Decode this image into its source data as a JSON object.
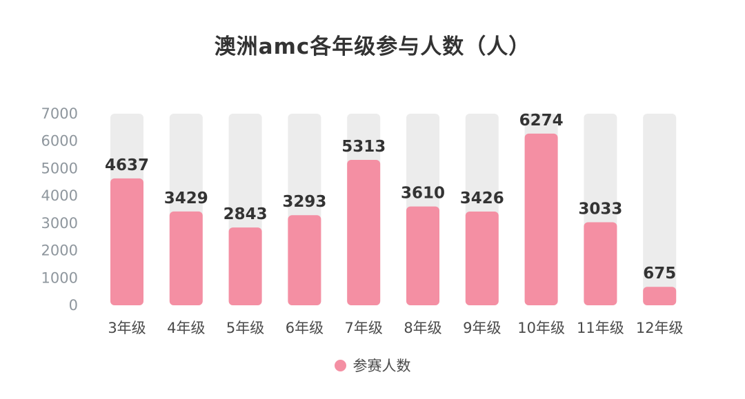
{
  "chart_data": {
    "type": "bar",
    "title": "澳洲amc各年级参与人数（人）",
    "categories": [
      "3年级",
      "4年级",
      "5年级",
      "6年级",
      "7年级",
      "8年级",
      "9年级",
      "10年级",
      "11年级",
      "12年级"
    ],
    "series": [
      {
        "name": "参赛人数",
        "values": [
          4637,
          3429,
          2843,
          3293,
          5313,
          3610,
          3426,
          6274,
          3033,
          675
        ]
      }
    ],
    "yticks": [
      "0",
      "1000",
      "2000",
      "3000",
      "4000",
      "5000",
      "6000",
      "7000"
    ],
    "ylim": [
      0,
      7000
    ],
    "grid": false,
    "legend": "bottom-center",
    "background_bars": true,
    "colors": {
      "bar": "#f48fa3",
      "track": "#ececec",
      "text": "#333333",
      "axis": "#8e969d"
    }
  }
}
